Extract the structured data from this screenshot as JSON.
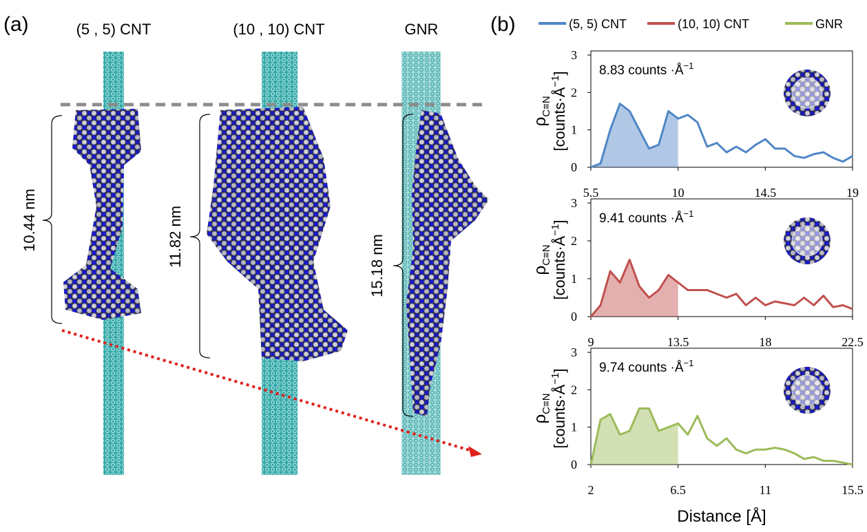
{
  "panel_a": {
    "label": "(a)",
    "titles": [
      "(5 , 5) CNT",
      "(10 , 10) CNT",
      "GNR"
    ],
    "lengths": [
      "10.44 nm",
      "11.82 nm",
      "15.18 nm"
    ]
  },
  "panel_b_label": "(b)",
  "chart_data": [
    {
      "type": "line",
      "x": [
        5.5,
        6,
        6.5,
        7,
        7.5,
        8,
        8.5,
        9,
        9.5,
        10,
        10.5,
        11,
        11.5,
        12,
        12.5,
        13,
        13.5,
        14,
        14.5,
        15,
        15.5,
        16,
        16.5,
        17,
        17.5,
        18,
        18.5,
        19
      ],
      "series": [
        {
          "name": "(5, 5) CNT",
          "color": "#4f86c6",
          "values": [
            0,
            0.1,
            1.0,
            1.7,
            1.5,
            1.0,
            0.5,
            0.6,
            1.5,
            1.3,
            1.4,
            1.2,
            0.55,
            0.65,
            0.4,
            0.55,
            0.4,
            0.6,
            0.75,
            0.5,
            0.5,
            0.3,
            0.25,
            0.35,
            0.4,
            0.25,
            0.15,
            0.3
          ]
        }
      ],
      "shade_xmax": 10,
      "xlim": [
        5.5,
        19
      ],
      "xticks": [
        5.5,
        10,
        14.5,
        19
      ],
      "ylim": [
        0,
        3
      ],
      "yticks": [
        0,
        1,
        2,
        3
      ],
      "ylabel": {
        "symbol": "ρ",
        "sub": "C≡N",
        "unit": "[counts·Å",
        "sup": "−1",
        "close": "]"
      },
      "annotation": {
        "text": "8.83 counts ·Å",
        "sup": "−1"
      }
    },
    {
      "type": "line",
      "x": [
        9,
        9.5,
        10,
        10.5,
        11,
        11.5,
        12,
        12.5,
        13,
        13.5,
        14,
        14.5,
        15,
        15.5,
        16,
        16.5,
        17,
        17.5,
        18,
        18.5,
        19,
        19.5,
        20,
        20.5,
        21,
        21.5,
        22,
        22.5
      ],
      "series": [
        {
          "name": "(10, 10) CNT",
          "color": "#c0504d",
          "values": [
            0,
            0.3,
            1.2,
            0.9,
            1.5,
            0.8,
            0.5,
            0.7,
            1.1,
            0.9,
            0.7,
            0.7,
            0.7,
            0.6,
            0.5,
            0.6,
            0.3,
            0.5,
            0.3,
            0.4,
            0.35,
            0.3,
            0.5,
            0.3,
            0.55,
            0.25,
            0.3,
            0.2
          ]
        }
      ],
      "shade_xmax": 13.5,
      "xlim": [
        9,
        22.5
      ],
      "xticks": [
        9,
        13.5,
        18,
        22.5
      ],
      "ylim": [
        0,
        3
      ],
      "yticks": [
        0,
        1,
        2,
        3
      ],
      "ylabel": {
        "symbol": "ρ",
        "sub": "C≡N",
        "unit": "[counts·Å",
        "sup": "−1",
        "close": "]"
      },
      "annotation": {
        "text": "9.41 counts ·Å",
        "sup": "−1"
      }
    },
    {
      "type": "line",
      "x": [
        2,
        2.5,
        3,
        3.5,
        4,
        4.5,
        5,
        5.5,
        6,
        6.5,
        7,
        7.5,
        8,
        8.5,
        9,
        9.5,
        10,
        10.5,
        11,
        11.5,
        12,
        12.5,
        13,
        13.5,
        14,
        14.5,
        15,
        15.5
      ],
      "series": [
        {
          "name": "GNR",
          "color": "#9bbb59",
          "values": [
            0,
            1.2,
            1.35,
            0.8,
            0.9,
            1.5,
            1.5,
            0.9,
            1.0,
            1.1,
            0.8,
            1.3,
            0.7,
            0.5,
            0.7,
            0.4,
            0.3,
            0.4,
            0.4,
            0.45,
            0.4,
            0.3,
            0.15,
            0.2,
            0.1,
            0.1,
            0.05,
            0
          ]
        }
      ],
      "shade_xmax": 6.5,
      "xlim": [
        2,
        15.5
      ],
      "xticks": [
        2,
        6.5,
        11,
        15.5
      ],
      "ylim": [
        0,
        3
      ],
      "yticks": [
        0,
        1,
        2,
        3
      ],
      "ylabel": {
        "symbol": "ρ",
        "sub": "C≡N",
        "unit": "[counts·Å",
        "sup": "−1",
        "close": "]"
      },
      "annotation": {
        "text": "9.74  counts ·Å",
        "sup": "−1"
      },
      "xlabel": "Distance [Å]"
    }
  ]
}
